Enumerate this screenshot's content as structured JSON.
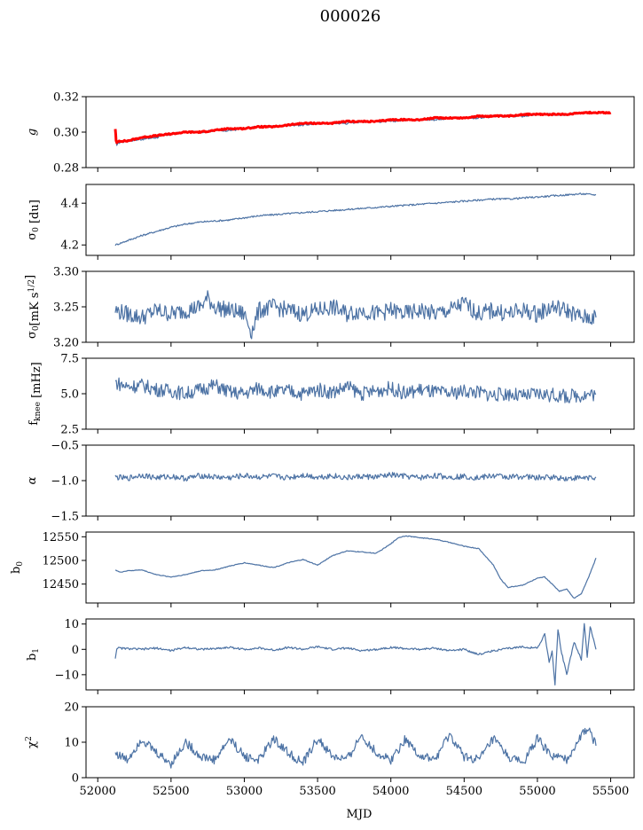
{
  "figure": {
    "title": "000026",
    "xlabel": "MJD"
  },
  "colors": {
    "series": "#4c72a4",
    "fit": "#ff0000"
  },
  "chart_data": [
    {
      "type": "line",
      "ylabel": "g",
      "ylim": [
        0.28,
        0.32
      ],
      "yticks": [
        "0.32",
        "0.30",
        "0.28"
      ],
      "ytick_values": [
        0.32,
        0.3,
        0.28
      ],
      "xlim": [
        51920,
        55660
      ],
      "series": [
        {
          "color": "#4c72a4",
          "x": [
            52120,
            52130,
            52140,
            52200,
            52300,
            52400,
            52500,
            52600,
            52700,
            52800,
            52900,
            53000,
            53100,
            53200,
            53300,
            53400,
            53500,
            53600,
            53700,
            53800,
            53900,
            54000,
            54100,
            54200,
            54300,
            54400,
            54500,
            54600,
            54700,
            54800,
            54900,
            55000,
            55100,
            55200,
            55300,
            55400
          ],
          "y": [
            0.296,
            0.293,
            0.294,
            0.295,
            0.296,
            0.297,
            0.299,
            0.3,
            0.3,
            0.301,
            0.301,
            0.302,
            0.303,
            0.303,
            0.304,
            0.304,
            0.305,
            0.305,
            0.305,
            0.306,
            0.306,
            0.306,
            0.307,
            0.307,
            0.307,
            0.308,
            0.308,
            0.308,
            0.309,
            0.309,
            0.309,
            0.31,
            0.31,
            0.31,
            0.311,
            0.311
          ]
        },
        {
          "color": "#ff0000",
          "x": [
            52120,
            52125,
            52130,
            52140,
            52200,
            52300,
            52400,
            52500,
            52600,
            52700,
            52800,
            52900,
            53000,
            53100,
            53200,
            53300,
            53400,
            53500,
            53600,
            53700,
            53800,
            53900,
            54000,
            54100,
            54200,
            54300,
            54400,
            54500,
            54600,
            54700,
            54800,
            54900,
            55000,
            55100,
            55200,
            55300,
            55400,
            55500
          ],
          "y": [
            0.302,
            0.295,
            0.294,
            0.295,
            0.295,
            0.297,
            0.298,
            0.299,
            0.3,
            0.3,
            0.301,
            0.302,
            0.302,
            0.303,
            0.303,
            0.304,
            0.305,
            0.305,
            0.305,
            0.306,
            0.306,
            0.306,
            0.307,
            0.307,
            0.307,
            0.308,
            0.308,
            0.308,
            0.309,
            0.309,
            0.309,
            0.31,
            0.31,
            0.31,
            0.31,
            0.311,
            0.311,
            0.311
          ]
        }
      ]
    },
    {
      "type": "line",
      "ylabel": "σ0 [du]",
      "ylim": [
        4.15,
        4.49
      ],
      "yticks": [
        "4.4",
        "4.2"
      ],
      "ytick_values": [
        4.4,
        4.2
      ],
      "xlim": [
        51920,
        55660
      ],
      "series": [
        {
          "color": "#4c72a4",
          "x": [
            52120,
            52200,
            52300,
            52400,
            52500,
            52600,
            52700,
            52800,
            52900,
            53000,
            53100,
            53200,
            53300,
            53400,
            53500,
            53600,
            53700,
            53800,
            53900,
            54000,
            54100,
            54200,
            54300,
            54400,
            54500,
            54600,
            54700,
            54800,
            54900,
            55000,
            55100,
            55200,
            55300,
            55400
          ],
          "y": [
            4.2,
            4.22,
            4.245,
            4.265,
            4.285,
            4.3,
            4.31,
            4.315,
            4.32,
            4.33,
            4.34,
            4.345,
            4.35,
            4.355,
            4.36,
            4.365,
            4.37,
            4.375,
            4.38,
            4.385,
            4.39,
            4.395,
            4.4,
            4.405,
            4.41,
            4.415,
            4.42,
            4.42,
            4.425,
            4.43,
            4.435,
            4.44,
            4.445,
            4.44
          ]
        }
      ]
    },
    {
      "type": "line",
      "ylabel": "σ0[mK s1/2]",
      "ylim": [
        3.2,
        3.3
      ],
      "yticks": [
        "3.30",
        "3.25",
        "3.20"
      ],
      "ytick_values": [
        3.3,
        3.25,
        3.2
      ],
      "xlim": [
        51920,
        55660
      ],
      "series": [
        {
          "color": "#4c72a4",
          "x": [
            52120,
            52200,
            52300,
            52400,
            52500,
            52600,
            52700,
            52750,
            52800,
            52900,
            53000,
            53050,
            53100,
            53200,
            53300,
            53400,
            53500,
            53600,
            53700,
            53800,
            53900,
            54000,
            54100,
            54200,
            54300,
            54400,
            54500,
            54600,
            54700,
            54800,
            54900,
            55000,
            55100,
            55200,
            55300,
            55400
          ],
          "y": [
            3.245,
            3.24,
            3.235,
            3.245,
            3.24,
            3.245,
            3.25,
            3.262,
            3.25,
            3.245,
            3.24,
            3.215,
            3.245,
            3.25,
            3.245,
            3.24,
            3.245,
            3.25,
            3.24,
            3.245,
            3.24,
            3.245,
            3.24,
            3.245,
            3.24,
            3.245,
            3.255,
            3.24,
            3.245,
            3.24,
            3.245,
            3.24,
            3.25,
            3.245,
            3.235,
            3.235
          ]
        }
      ]
    },
    {
      "type": "line",
      "ylabel": "fknee [mHz]",
      "ylim": [
        2.5,
        7.5
      ],
      "yticks": [
        "7.5",
        "5.0",
        "2.5"
      ],
      "ytick_values": [
        7.5,
        5.0,
        2.5
      ],
      "xlim": [
        51920,
        55660
      ],
      "series": [
        {
          "color": "#4c72a4",
          "x": [
            52120,
            52200,
            52300,
            52400,
            52500,
            52600,
            52700,
            52800,
            52900,
            53000,
            53100,
            53200,
            53300,
            53400,
            53500,
            53600,
            53700,
            53800,
            53900,
            54000,
            54100,
            54200,
            54300,
            54400,
            54500,
            54600,
            54700,
            54800,
            54900,
            55000,
            55100,
            55200,
            55300,
            55400
          ],
          "y": [
            5.8,
            5.5,
            5.6,
            5.3,
            5.2,
            5.0,
            5.3,
            5.6,
            5.1,
            5.0,
            5.4,
            5.1,
            5.2,
            5.0,
            5.3,
            5.1,
            5.5,
            5.0,
            5.2,
            5.4,
            5.0,
            5.3,
            5.1,
            5.0,
            5.2,
            5.1,
            4.9,
            5.0,
            4.8,
            5.0,
            4.9,
            4.8,
            4.9,
            5.0
          ]
        }
      ]
    },
    {
      "type": "line",
      "ylabel": "α",
      "ylim": [
        -1.5,
        -0.5
      ],
      "yticks": [
        "−0.5",
        "−1.0",
        "−1.5"
      ],
      "ytick_values": [
        -0.5,
        -1.0,
        -1.5
      ],
      "xlim": [
        51920,
        55660
      ],
      "series": [
        {
          "color": "#4c72a4",
          "x": [
            52120,
            52200,
            52300,
            52400,
            52500,
            52600,
            52700,
            52800,
            52900,
            53000,
            53100,
            53200,
            53300,
            53400,
            53500,
            53600,
            53700,
            53800,
            53900,
            54000,
            54100,
            54200,
            54300,
            54400,
            54500,
            54600,
            54700,
            54800,
            54900,
            55000,
            55100,
            55200,
            55300,
            55400
          ],
          "y": [
            -0.95,
            -0.97,
            -0.92,
            -0.96,
            -0.94,
            -0.97,
            -0.93,
            -0.95,
            -0.96,
            -0.93,
            -0.95,
            -0.94,
            -0.96,
            -0.92,
            -0.95,
            -0.93,
            -0.96,
            -0.94,
            -0.95,
            -0.92,
            -0.94,
            -0.96,
            -0.93,
            -0.95,
            -0.94,
            -0.96,
            -0.93,
            -0.95,
            -0.94,
            -0.96,
            -0.95,
            -0.97,
            -0.96,
            -0.95
          ]
        }
      ]
    },
    {
      "type": "line",
      "ylabel": "b0",
      "ylim": [
        12410,
        12560
      ],
      "yticks": [
        "12550",
        "12500",
        "12450"
      ],
      "ytick_values": [
        12550,
        12500,
        12450
      ],
      "xlim": [
        51920,
        55660
      ],
      "series": [
        {
          "color": "#4c72a4",
          "x": [
            52120,
            52150,
            52200,
            52300,
            52400,
            52500,
            52600,
            52700,
            52800,
            52900,
            53000,
            53100,
            53200,
            53300,
            53400,
            53500,
            53600,
            53700,
            53800,
            53900,
            54000,
            54050,
            54100,
            54200,
            54300,
            54400,
            54500,
            54600,
            54700,
            54750,
            54800,
            54900,
            55000,
            55050,
            55100,
            55150,
            55200,
            55250,
            55300,
            55350,
            55400
          ],
          "y": [
            12480,
            12475,
            12478,
            12480,
            12470,
            12465,
            12470,
            12478,
            12480,
            12488,
            12495,
            12490,
            12485,
            12495,
            12502,
            12490,
            12510,
            12520,
            12518,
            12515,
            12535,
            12548,
            12552,
            12548,
            12545,
            12538,
            12530,
            12525,
            12490,
            12460,
            12443,
            12448,
            12462,
            12465,
            12450,
            12435,
            12440,
            12420,
            12430,
            12465,
            12505
          ]
        }
      ]
    },
    {
      "type": "line",
      "ylabel": "b1",
      "ylim": [
        -16,
        12
      ],
      "yticks": [
        "10",
        "0",
        "−10"
      ],
      "ytick_values": [
        10,
        0,
        -10
      ],
      "xlim": [
        51920,
        55660
      ],
      "series": [
        {
          "color": "#4c72a4",
          "x": [
            52120,
            52130,
            52200,
            52300,
            52400,
            52500,
            52600,
            52700,
            52800,
            52900,
            53000,
            53100,
            53200,
            53300,
            53400,
            53500,
            53600,
            53700,
            53800,
            53900,
            54000,
            54100,
            54200,
            54300,
            54400,
            54500,
            54600,
            54700,
            54800,
            54900,
            55000,
            55050,
            55080,
            55100,
            55120,
            55140,
            55160,
            55200,
            55250,
            55300,
            55320,
            55340,
            55360,
            55400
          ],
          "y": [
            -3.5,
            0.5,
            0.3,
            0,
            0.5,
            -0.5,
            0.8,
            0,
            0.3,
            0.8,
            0,
            0.5,
            -0.3,
            0.8,
            0,
            1,
            0,
            0.5,
            -0.5,
            0,
            0.8,
            0.3,
            0,
            0.5,
            -0.5,
            0,
            -2,
            -0.5,
            0.3,
            1,
            0.5,
            6,
            -5,
            -1,
            -14,
            8,
            0,
            -10,
            3,
            -4,
            10,
            -3,
            9,
            0
          ]
        }
      ]
    },
    {
      "type": "line",
      "ylabel": "χ2",
      "ylim": [
        0,
        20
      ],
      "yticks": [
        "20",
        "10",
        "0"
      ],
      "ytick_values": [
        20,
        10,
        0
      ],
      "xlim": [
        51920,
        55660
      ],
      "series": [
        {
          "color": "#4c72a4",
          "x": [
            52120,
            52200,
            52300,
            52400,
            52500,
            52600,
            52700,
            52800,
            52900,
            53000,
            53100,
            53200,
            53300,
            53400,
            53500,
            53600,
            53700,
            53800,
            53900,
            54000,
            54100,
            54200,
            54300,
            54400,
            54500,
            54600,
            54700,
            54800,
            54900,
            55000,
            55100,
            55200,
            55300,
            55350,
            55400
          ],
          "y": [
            7,
            5,
            11,
            7,
            4,
            10,
            6,
            5,
            11,
            6,
            5,
            11,
            7,
            4,
            11,
            6,
            5,
            12,
            7,
            5,
            11,
            6,
            5,
            12,
            6,
            5,
            11,
            6,
            4,
            11,
            6,
            5,
            12,
            14,
            9
          ]
        }
      ]
    }
  ],
  "xaxis": {
    "xlim": [
      51920,
      55660
    ],
    "ticks": [
      "52000",
      "52500",
      "53000",
      "53500",
      "54000",
      "54500",
      "55000",
      "55500"
    ],
    "tick_values": [
      52000,
      52500,
      53000,
      53500,
      54000,
      54500,
      55000,
      55500
    ]
  }
}
